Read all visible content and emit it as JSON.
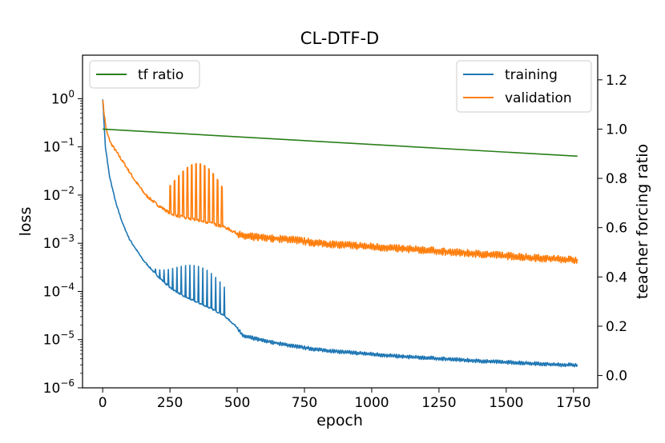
{
  "chart_data": {
    "type": "line",
    "title": "CL-DTF-D",
    "xlabel": "epoch",
    "ylabel": "loss",
    "y2label": "teacher forcing ratio",
    "xlim": [
      -75,
      1840
    ],
    "ylim": [
      1e-06,
      8
    ],
    "yscale": "log",
    "y2lim": [
      -0.05,
      1.3
    ],
    "xticks": [
      "0",
      "250",
      "500",
      "750",
      "1000",
      "1250",
      "1500",
      "1750"
    ],
    "yticks": [
      "10",
      "10",
      "10",
      "10",
      "10",
      "10",
      "10"
    ],
    "yticks_exp": [
      "−6",
      "−5",
      "−4",
      "−3",
      "−2",
      "−1",
      "0"
    ],
    "y2ticks": [
      "0.0",
      "0.2",
      "0.4",
      "0.6",
      "0.8",
      "1.0",
      "1.2"
    ],
    "grid": false,
    "legend_left": {
      "position": "upper-left",
      "entries": [
        "tf ratio"
      ]
    },
    "legend_right": {
      "position": "upper-right",
      "entries": [
        "training",
        "validation"
      ]
    },
    "series": [
      {
        "name": "training",
        "axis": "left",
        "color": "#1f77b4",
        "x": [
          0,
          10,
          25,
          50,
          75,
          100,
          150,
          200,
          250,
          300,
          350,
          400,
          450,
          500,
          520,
          600,
          700,
          750,
          800,
          900,
          1000,
          1100,
          1200,
          1300,
          1400,
          1500,
          1600,
          1700,
          1765
        ],
        "y": [
          1.0,
          0.1,
          0.025,
          0.0065,
          0.0025,
          0.0012,
          0.00045,
          0.00022,
          0.00012,
          8e-05,
          6e-05,
          4.5e-05,
          3.2e-05,
          1.8e-05,
          1.2e-05,
          9.5e-06,
          7.5e-06,
          6.8e-06,
          6.2e-06,
          5.5e-06,
          5e-06,
          4.5e-06,
          4.2e-06,
          3.9e-06,
          3.6e-06,
          3.4e-06,
          3.2e-06,
          3e-06,
          3e-06
        ]
      },
      {
        "name": "validation",
        "axis": "left",
        "color": "#ff7f0e",
        "x": [
          0,
          5,
          15,
          30,
          50,
          80,
          120,
          160,
          200,
          250,
          300,
          350,
          400,
          450,
          500,
          520,
          600,
          700,
          750,
          800,
          900,
          1000,
          1100,
          1200,
          1300,
          1400,
          1500,
          1600,
          1700,
          1765
        ],
        "y": [
          1.0,
          0.5,
          0.2,
          0.12,
          0.08,
          0.045,
          0.02,
          0.01,
          0.0065,
          0.0042,
          0.0034,
          0.003,
          0.0026,
          0.0022,
          0.0016,
          0.0014,
          0.0013,
          0.0012,
          0.0011,
          0.001,
          0.00092,
          0.00085,
          0.00078,
          0.00072,
          0.00065,
          0.0006,
          0.00055,
          0.0005,
          0.00047,
          0.00045
        ]
      },
      {
        "name": "tf ratio",
        "axis": "right",
        "color": "#2a7f1a",
        "x": [
          0,
          1765
        ],
        "y": [
          1.0,
          0.89
        ]
      }
    ],
    "spikes": {
      "training": {
        "x_start": 195,
        "x_end": 455,
        "step": 16,
        "peak": 0.00035
      },
      "validation": {
        "x_start": 250,
        "x_end": 455,
        "step": 16,
        "peak": 0.045
      }
    }
  }
}
